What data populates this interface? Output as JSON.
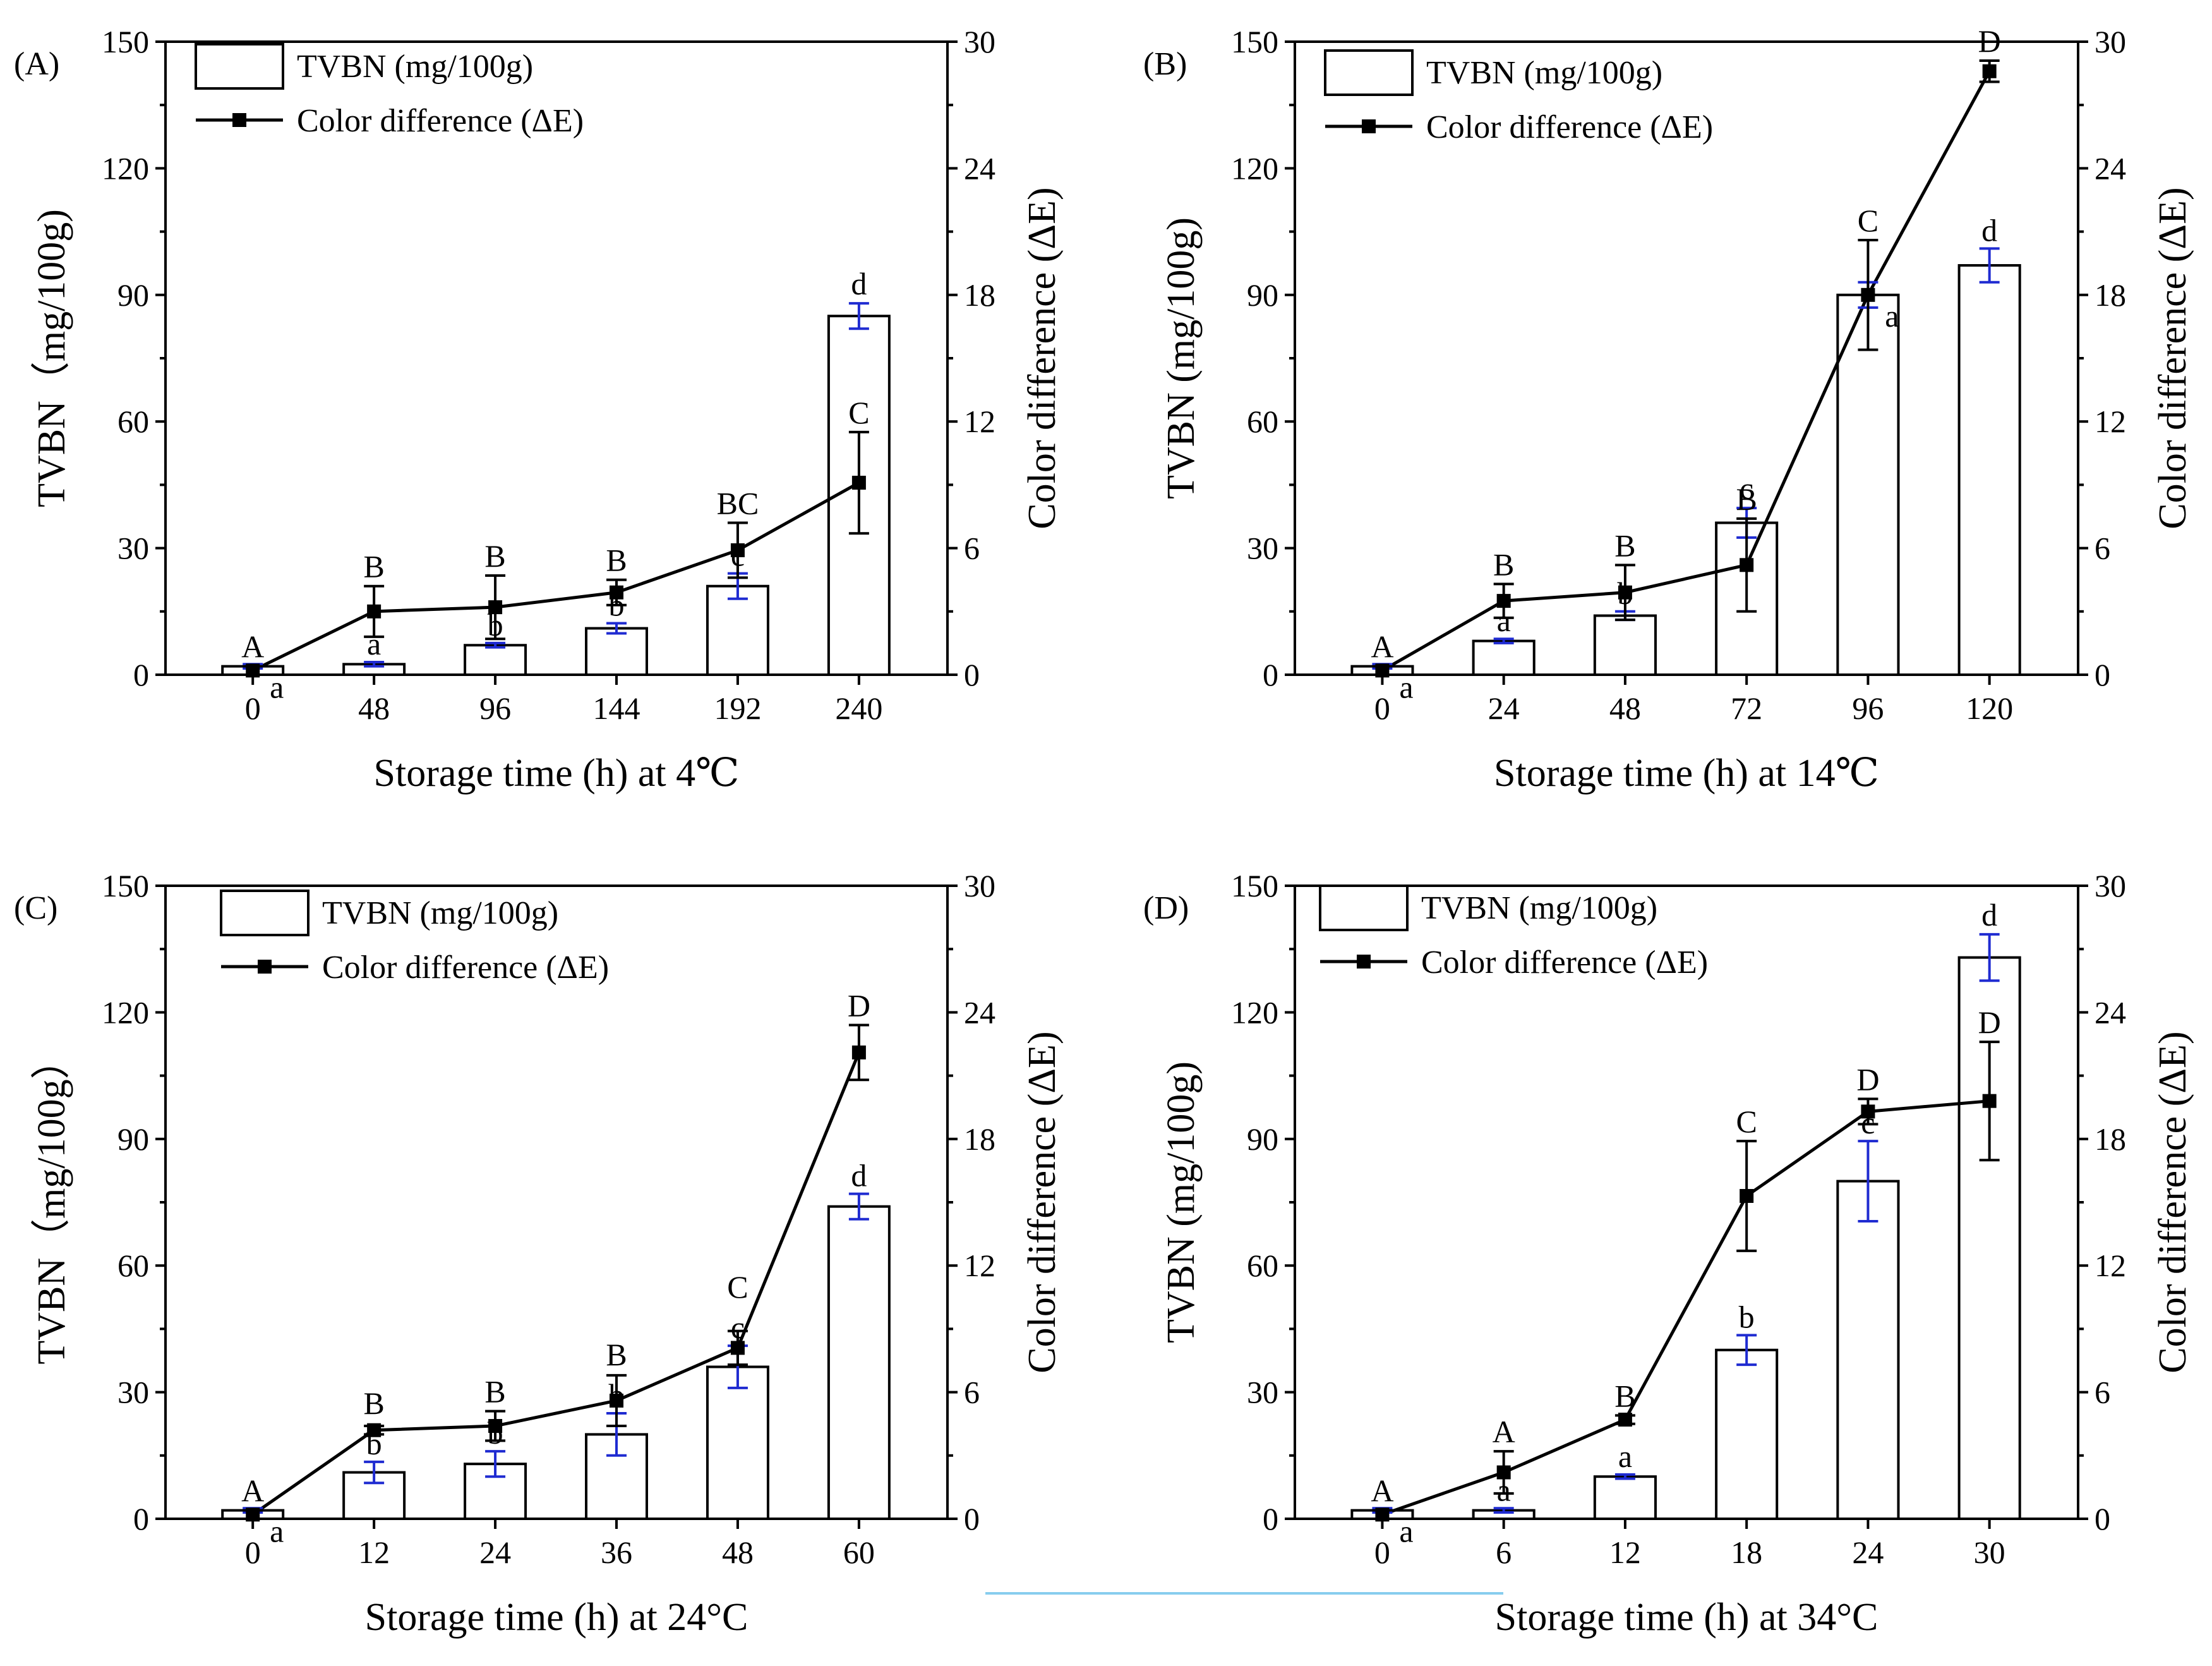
{
  "colors": {
    "axis": "#000000",
    "bar_fill": "#ffffff",
    "line": "#000000",
    "tvbn_error": "#1f2bd1",
    "de_error": "#000000",
    "divider": "#87cdee"
  },
  "legend": {
    "tvbn": "TVBN (mg/100g)",
    "de": "Color difference (ΔE)"
  },
  "chart_data": [
    {
      "type": "bar+line",
      "panel": "(A)",
      "xlabel": "Storage time (h) at 4℃",
      "ylabel_left": "TVBN（mg/100g)",
      "ylabel_right": "Color difference (ΔE)",
      "ylim_left": [
        0,
        150
      ],
      "ylim_right": [
        0,
        30
      ],
      "yticks_left": [
        "0",
        "30",
        "60",
        "90",
        "120",
        "150"
      ],
      "yticks_right": [
        "0",
        "6",
        "12",
        "18",
        "24",
        "30"
      ],
      "categories": [
        "0",
        "48",
        "96",
        "144",
        "192",
        "240"
      ],
      "series": [
        {
          "name": "TVBN (mg/100g)",
          "type": "bar",
          "axis": "left",
          "values": [
            2,
            2.5,
            7,
            11,
            21,
            85
          ],
          "errors": [
            0.5,
            0.5,
            0.5,
            1.2,
            3,
            3
          ],
          "letters": [
            "a",
            "a",
            "b",
            "b",
            "c",
            "d"
          ]
        },
        {
          "name": "Color difference (ΔE)",
          "type": "line",
          "axis": "right",
          "values": [
            0.2,
            3.0,
            3.2,
            3.9,
            5.9,
            9.1
          ],
          "errors": [
            0.2,
            1.2,
            1.5,
            0.6,
            1.3,
            2.4
          ],
          "letters": [
            "A",
            "B",
            "B",
            "B",
            "BC",
            "C"
          ]
        }
      ]
    },
    {
      "type": "bar+line",
      "panel": "(B)",
      "xlabel": "Storage time (h) at 14℃",
      "ylabel_left": "TVBN (mg/100g)",
      "ylabel_right": "Color difference (ΔE)",
      "ylim_left": [
        0,
        150
      ],
      "ylim_right": [
        0,
        30
      ],
      "yticks_left": [
        "0",
        "30",
        "60",
        "90",
        "120",
        "150"
      ],
      "yticks_right": [
        "0",
        "6",
        "12",
        "18",
        "24",
        "30"
      ],
      "categories": [
        "0",
        "24",
        "48",
        "72",
        "96",
        "120"
      ],
      "series": [
        {
          "name": "TVBN (mg/100g)",
          "type": "bar",
          "axis": "left",
          "values": [
            2,
            8,
            14,
            36,
            90,
            97
          ],
          "errors": [
            0.5,
            0.5,
            1,
            3.5,
            3,
            4
          ],
          "letters": [
            "a",
            "a",
            "b",
            "c",
            "a",
            "d"
          ]
        },
        {
          "name": "Color difference (ΔE)",
          "type": "line",
          "axis": "right",
          "values": [
            0.2,
            3.5,
            3.9,
            5.2,
            18.0,
            28.6
          ],
          "errors": [
            0.2,
            0.8,
            1.3,
            2.2,
            2.6,
            0.5
          ],
          "letters": [
            "A",
            "B",
            "B",
            "B",
            "C",
            "D"
          ]
        }
      ]
    },
    {
      "type": "bar+line",
      "panel": "(C)",
      "xlabel": "Storage time (h) at 24°C",
      "ylabel_left": "TVBN（mg/100g）",
      "ylabel_right": "Color difference (ΔE)",
      "ylim_left": [
        0,
        150
      ],
      "ylim_right": [
        0,
        30
      ],
      "yticks_left": [
        "0",
        "30",
        "60",
        "90",
        "120",
        "150"
      ],
      "yticks_right": [
        "0",
        "6",
        "12",
        "18",
        "24",
        "30"
      ],
      "categories": [
        "0",
        "12",
        "24",
        "36",
        "48",
        "60"
      ],
      "series": [
        {
          "name": "TVBN (mg/100g)",
          "type": "bar",
          "axis": "left",
          "values": [
            2,
            11,
            13,
            20,
            36,
            74
          ],
          "errors": [
            0.5,
            2.5,
            3,
            5,
            5,
            3
          ],
          "letters": [
            "a",
            "b",
            "b",
            "b",
            "c",
            "d"
          ]
        },
        {
          "name": "Color difference (ΔE)",
          "type": "line",
          "axis": "right",
          "values": [
            0.2,
            4.2,
            4.4,
            5.6,
            8.1,
            22.1
          ],
          "errors": [
            0.2,
            0.2,
            0.7,
            1.2,
            0.8,
            1.3
          ],
          "letters": [
            "A",
            "B",
            "B",
            "B",
            "C",
            "D"
          ]
        }
      ]
    },
    {
      "type": "bar+line",
      "panel": "(D)",
      "xlabel": "Storage time (h) at 34°C",
      "ylabel_left": "TVBN (mg/100g)",
      "ylabel_right": "Color difference (ΔE)",
      "ylim_left": [
        0,
        150
      ],
      "ylim_right": [
        0,
        30
      ],
      "yticks_left": [
        "0",
        "30",
        "60",
        "90",
        "120",
        "150"
      ],
      "yticks_right": [
        "0",
        "6",
        "12",
        "18",
        "24",
        "30"
      ],
      "categories": [
        "0",
        "6",
        "12",
        "18",
        "24",
        "30"
      ],
      "series": [
        {
          "name": "TVBN (mg/100g)",
          "type": "bar",
          "axis": "left",
          "values": [
            2,
            2,
            10,
            40,
            80,
            133
          ],
          "errors": [
            0.5,
            0.5,
            0.5,
            3.5,
            9.5,
            5.5
          ],
          "letters": [
            "a",
            "a",
            "a",
            "b",
            "c",
            "d"
          ]
        },
        {
          "name": "Color difference (ΔE)",
          "type": "line",
          "axis": "right",
          "values": [
            0.2,
            2.2,
            4.7,
            15.3,
            19.3,
            19.8
          ],
          "errors": [
            0.2,
            1.0,
            0.2,
            2.6,
            0.6,
            2.8
          ],
          "letters": [
            "A",
            "A",
            "B",
            "C",
            "D",
            "D"
          ]
        }
      ]
    }
  ]
}
